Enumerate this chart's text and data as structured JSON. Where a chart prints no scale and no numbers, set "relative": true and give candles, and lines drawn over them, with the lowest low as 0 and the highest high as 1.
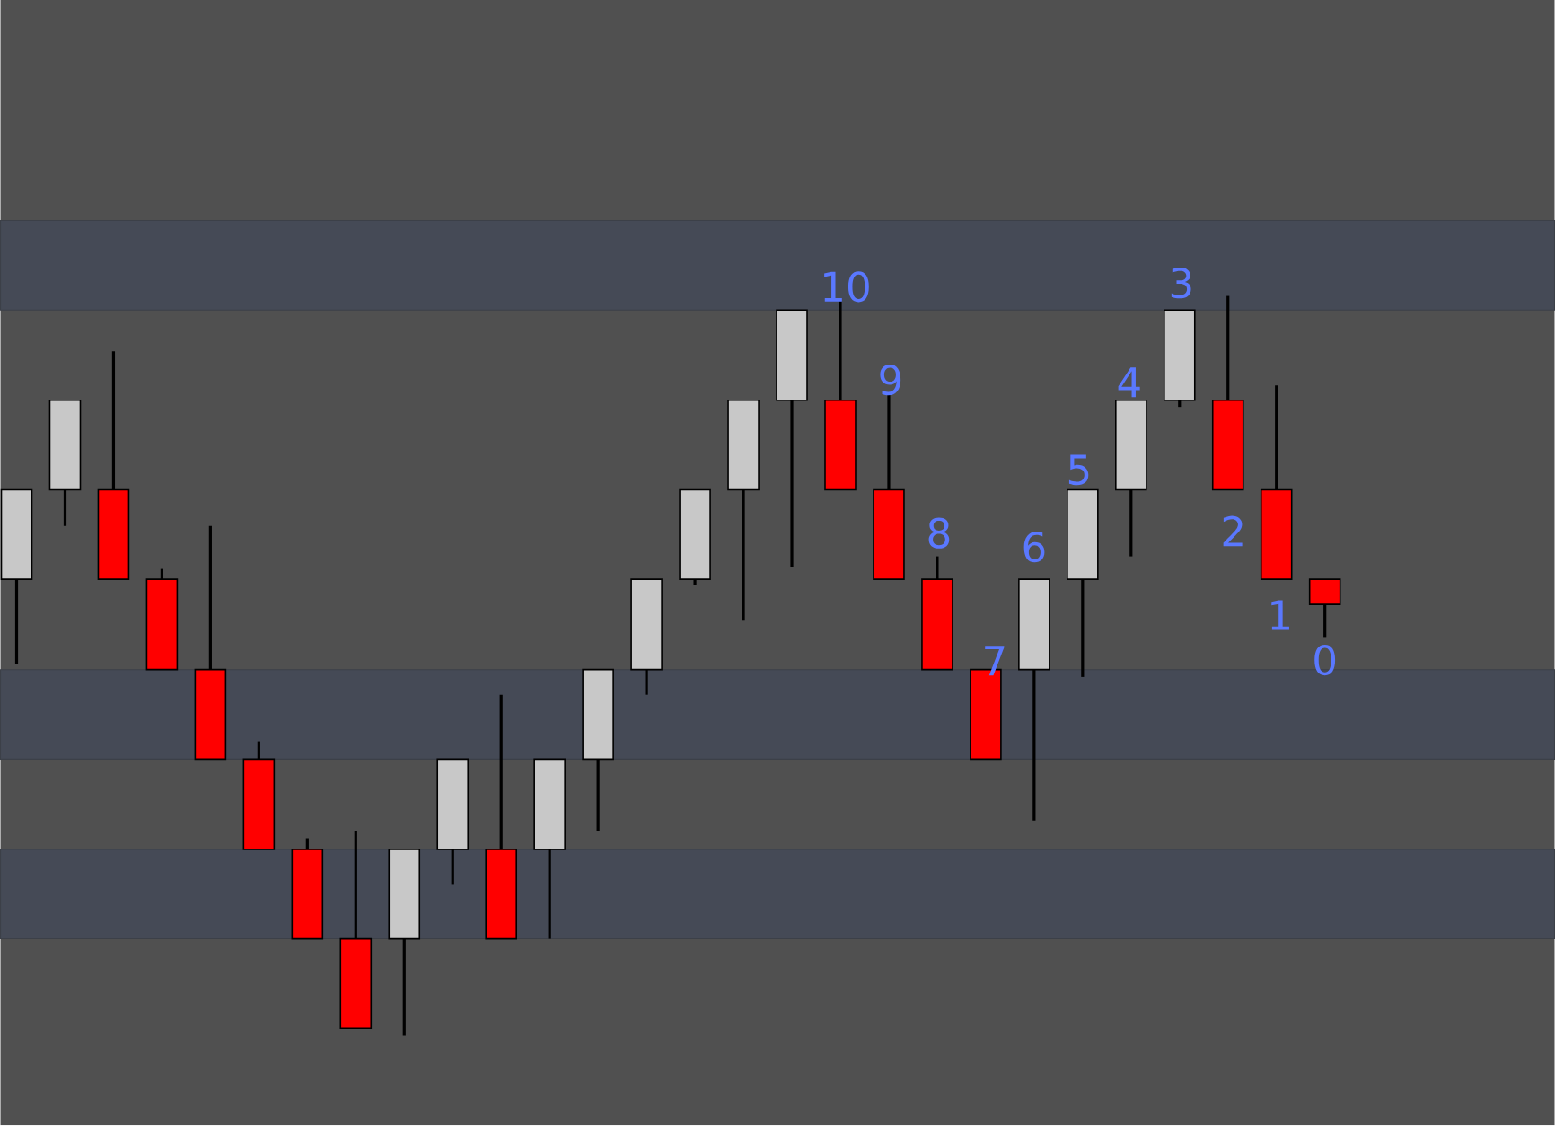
{
  "chart_data": {
    "type": "candlestick",
    "relative": true,
    "categories": [
      null,
      null,
      null,
      null,
      null,
      null,
      null,
      null,
      null,
      null,
      null,
      null,
      null,
      null,
      null,
      null,
      null,
      null,
      null,
      null,
      null,
      null,
      null,
      null,
      null,
      null,
      null,
      null
    ],
    "ohlc": [
      [
        0.617,
        0.738,
        0.502,
        0.738
      ],
      [
        0.738,
        0.859,
        0.689,
        0.859
      ],
      [
        0.738,
        0.925,
        0.617,
        0.617
      ],
      [
        0.617,
        0.631,
        0.495,
        0.495
      ],
      [
        0.495,
        0.689,
        0.374,
        0.374
      ],
      [
        0.374,
        0.398,
        0.252,
        0.252
      ],
      [
        0.252,
        0.267,
        0.131,
        0.131
      ],
      [
        0.131,
        0.277,
        0.01,
        0.01
      ],
      [
        0.131,
        0.252,
        0,
        0.252
      ],
      [
        0.252,
        0.374,
        0.204,
        0.374
      ],
      [
        0.252,
        0.461,
        0.131,
        0.131
      ],
      [
        0.252,
        0.374,
        0.131,
        0.374
      ],
      [
        0.374,
        0.495,
        0.277,
        0.495
      ],
      [
        0.495,
        0.617,
        0.461,
        0.617
      ],
      [
        0.617,
        0.738,
        0.609,
        0.738
      ],
      [
        0.738,
        0.859,
        0.561,
        0.859
      ],
      [
        0.859,
        0.981,
        0.633,
        0.981
      ],
      [
        0.859,
        0.993,
        0.738,
        0.738
      ],
      [
        0.738,
        0.867,
        0.617,
        0.617
      ],
      [
        0.617,
        0.648,
        0.495,
        0.495
      ],
      [
        0.495,
        0.495,
        0.374,
        0.374
      ],
      [
        0.495,
        0.617,
        0.291,
        0.617
      ],
      [
        0.617,
        0.738,
        0.485,
        0.738
      ],
      [
        0.738,
        0.859,
        0.648,
        0.859
      ],
      [
        0.859,
        0.981,
        0.85,
        0.981
      ],
      [
        0.859,
        1.0,
        0.738,
        0.738
      ],
      [
        0.738,
        0.879,
        0.617,
        0.617
      ],
      [
        0.617,
        0.617,
        0.539,
        0.583
      ]
    ],
    "colors": [
      "#c8c8c8",
      "#c8c8c8",
      "#ff0000",
      "#ff0000",
      "#ff0000",
      "#ff0000",
      "#ff0000",
      "#ff0000",
      "#c8c8c8",
      "#c8c8c8",
      "#ff0000",
      "#c8c8c8",
      "#c8c8c8",
      "#c8c8c8",
      "#c8c8c8",
      "#c8c8c8",
      "#c8c8c8",
      "#ff0000",
      "#ff0000",
      "#ff0000",
      "#ff0000",
      "#c8c8c8",
      "#c8c8c8",
      "#c8c8c8",
      "#c8c8c8",
      "#ff0000",
      "#ff0000",
      "#ff0000"
    ],
    "bands": [
      {
        "axis": "y",
        "from": 0.981,
        "to": 1.102,
        "color": "#454a56"
      },
      {
        "axis": "y",
        "from": 0.374,
        "to": 0.495,
        "color": "#454a56"
      },
      {
        "axis": "y",
        "from": 0.131,
        "to": 0.252,
        "color": "#454a56"
      }
    ],
    "annotations": [
      "10",
      "9",
      "8",
      "7",
      "6",
      "5",
      "4",
      "3",
      "2",
      "1",
      "0"
    ]
  }
}
